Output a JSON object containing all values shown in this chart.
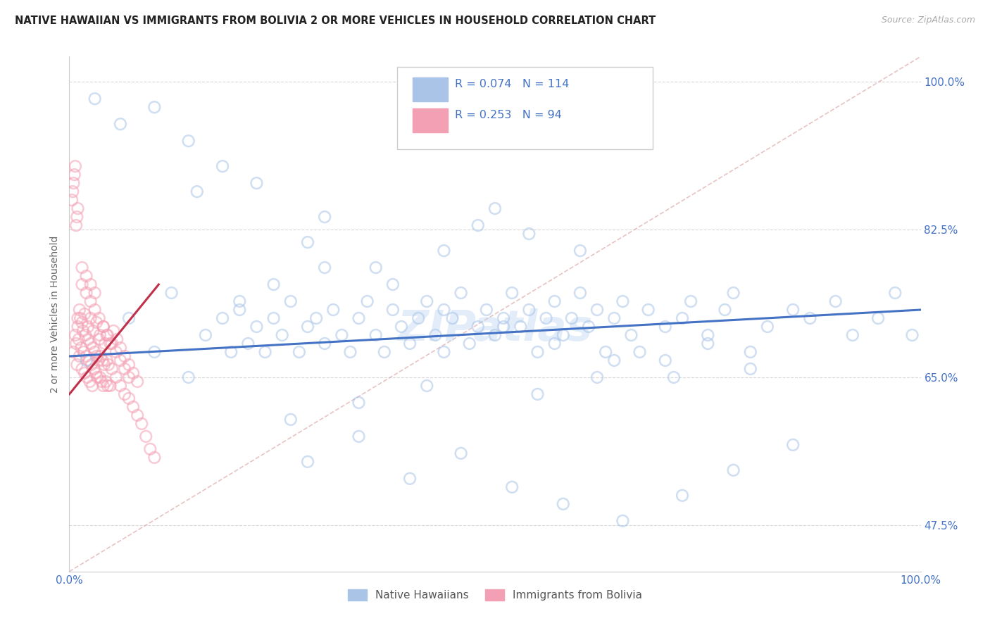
{
  "title": "NATIVE HAWAIIAN VS IMMIGRANTS FROM BOLIVIA 2 OR MORE VEHICLES IN HOUSEHOLD CORRELATION CHART",
  "source": "Source: ZipAtlas.com",
  "ylabel": "2 or more Vehicles in Household",
  "legend_label1": "Native Hawaiians",
  "legend_label2": "Immigrants from Bolivia",
  "R1": 0.074,
  "N1": 114,
  "R2": 0.253,
  "N2": 94,
  "color1": "#aac4e8",
  "color2": "#f4a0b4",
  "line_color1": "#4472c4",
  "line_color2": "#c0304a",
  "diag_color": "#e8b0b8",
  "background_color": "#ffffff",
  "grid_color": "#d8d8d8",
  "title_color": "#222222",
  "axis_label_color": "#4472c4",
  "source_color": "#aaaaaa",
  "xmin": 0.0,
  "xmax": 1.0,
  "ymin": 0.42,
  "ymax": 1.03,
  "yticks": [
    0.475,
    0.65,
    0.825,
    1.0
  ],
  "ytick_labels": [
    "47.5%",
    "65.0%",
    "82.5%",
    "100.0%"
  ],
  "xticks": [
    0.0,
    1.0
  ],
  "xtick_labels": [
    "0.0%",
    "100.0%"
  ],
  "hawaii_x": [
    0.02,
    0.07,
    0.1,
    0.12,
    0.14,
    0.16,
    0.18,
    0.19,
    0.2,
    0.21,
    0.22,
    0.23,
    0.24,
    0.25,
    0.26,
    0.27,
    0.28,
    0.29,
    0.3,
    0.31,
    0.32,
    0.33,
    0.34,
    0.35,
    0.36,
    0.37,
    0.38,
    0.39,
    0.4,
    0.41,
    0.42,
    0.43,
    0.44,
    0.45,
    0.46,
    0.47,
    0.48,
    0.49,
    0.5,
    0.51,
    0.52,
    0.53,
    0.54,
    0.55,
    0.56,
    0.57,
    0.58,
    0.59,
    0.6,
    0.61,
    0.62,
    0.63,
    0.64,
    0.65,
    0.66,
    0.67,
    0.68,
    0.7,
    0.72,
    0.73,
    0.75,
    0.77,
    0.78,
    0.8,
    0.82,
    0.85,
    0.87,
    0.9,
    0.92,
    0.95,
    0.97,
    0.99,
    0.48,
    0.3,
    0.28,
    0.36,
    0.44,
    0.5,
    0.54,
    0.6,
    0.42,
    0.34,
    0.26,
    0.55,
    0.62,
    0.7,
    0.75,
    0.8,
    0.28,
    0.34,
    0.4,
    0.46,
    0.52,
    0.58,
    0.65,
    0.72,
    0.78,
    0.85,
    0.22,
    0.18,
    0.14,
    0.1,
    0.06,
    0.03,
    0.2,
    0.24,
    0.3,
    0.38,
    0.44,
    0.51,
    0.57,
    0.64,
    0.71,
    0.15
  ],
  "hawaii_y": [
    0.67,
    0.72,
    0.68,
    0.75,
    0.65,
    0.7,
    0.72,
    0.68,
    0.73,
    0.69,
    0.71,
    0.68,
    0.72,
    0.7,
    0.74,
    0.68,
    0.71,
    0.72,
    0.69,
    0.73,
    0.7,
    0.68,
    0.72,
    0.74,
    0.7,
    0.68,
    0.73,
    0.71,
    0.69,
    0.72,
    0.74,
    0.7,
    0.68,
    0.72,
    0.75,
    0.69,
    0.71,
    0.73,
    0.7,
    0.72,
    0.75,
    0.71,
    0.73,
    0.68,
    0.72,
    0.74,
    0.7,
    0.72,
    0.75,
    0.71,
    0.73,
    0.68,
    0.72,
    0.74,
    0.7,
    0.68,
    0.73,
    0.71,
    0.72,
    0.74,
    0.7,
    0.73,
    0.75,
    0.68,
    0.71,
    0.73,
    0.72,
    0.74,
    0.7,
    0.72,
    0.75,
    0.7,
    0.83,
    0.84,
    0.81,
    0.78,
    0.8,
    0.85,
    0.82,
    0.8,
    0.64,
    0.62,
    0.6,
    0.63,
    0.65,
    0.67,
    0.69,
    0.66,
    0.55,
    0.58,
    0.53,
    0.56,
    0.52,
    0.5,
    0.48,
    0.51,
    0.54,
    0.57,
    0.88,
    0.9,
    0.93,
    0.97,
    0.95,
    0.98,
    0.74,
    0.76,
    0.78,
    0.76,
    0.73,
    0.71,
    0.69,
    0.67,
    0.65,
    0.87
  ],
  "bolivia_x": [
    0.005,
    0.007,
    0.008,
    0.009,
    0.01,
    0.011,
    0.012,
    0.013,
    0.014,
    0.015,
    0.016,
    0.017,
    0.018,
    0.019,
    0.02,
    0.021,
    0.022,
    0.023,
    0.024,
    0.025,
    0.026,
    0.027,
    0.028,
    0.029,
    0.03,
    0.031,
    0.032,
    0.033,
    0.034,
    0.035,
    0.036,
    0.037,
    0.038,
    0.039,
    0.04,
    0.041,
    0.042,
    0.043,
    0.044,
    0.045,
    0.046,
    0.048,
    0.05,
    0.055,
    0.06,
    0.065,
    0.07,
    0.075,
    0.08,
    0.085,
    0.09,
    0.095,
    0.1,
    0.01,
    0.012,
    0.015,
    0.018,
    0.022,
    0.025,
    0.028,
    0.032,
    0.036,
    0.04,
    0.044,
    0.048,
    0.052,
    0.056,
    0.06,
    0.065,
    0.07,
    0.075,
    0.08,
    0.015,
    0.02,
    0.025,
    0.03,
    0.035,
    0.04,
    0.045,
    0.05,
    0.055,
    0.06,
    0.065,
    0.07,
    0.003,
    0.004,
    0.005,
    0.006,
    0.007,
    0.008,
    0.009,
    0.01,
    0.015,
    0.02,
    0.025,
    0.03
  ],
  "bolivia_y": [
    0.68,
    0.7,
    0.69,
    0.665,
    0.71,
    0.695,
    0.675,
    0.72,
    0.685,
    0.66,
    0.705,
    0.68,
    0.655,
    0.7,
    0.675,
    0.65,
    0.695,
    0.67,
    0.645,
    0.69,
    0.665,
    0.64,
    0.685,
    0.66,
    0.68,
    0.655,
    0.675,
    0.65,
    0.67,
    0.695,
    0.65,
    0.675,
    0.645,
    0.67,
    0.64,
    0.665,
    0.69,
    0.645,
    0.67,
    0.64,
    0.665,
    0.64,
    0.66,
    0.65,
    0.64,
    0.63,
    0.625,
    0.615,
    0.605,
    0.595,
    0.58,
    0.565,
    0.555,
    0.72,
    0.73,
    0.715,
    0.725,
    0.71,
    0.72,
    0.705,
    0.715,
    0.7,
    0.71,
    0.7,
    0.69,
    0.705,
    0.695,
    0.685,
    0.675,
    0.665,
    0.655,
    0.645,
    0.76,
    0.75,
    0.74,
    0.73,
    0.72,
    0.71,
    0.7,
    0.69,
    0.68,
    0.67,
    0.66,
    0.65,
    0.86,
    0.87,
    0.88,
    0.89,
    0.9,
    0.83,
    0.84,
    0.85,
    0.78,
    0.77,
    0.76,
    0.75
  ],
  "watermark": "ZIPatlas",
  "marker_size": 130,
  "alpha": 0.55,
  "hawaii_trendline_x": [
    0.0,
    1.0
  ],
  "hawaii_trendline_y": [
    0.675,
    0.73
  ],
  "bolivia_trendline_x": [
    0.0,
    0.105
  ],
  "bolivia_trendline_y": [
    0.63,
    0.76
  ]
}
